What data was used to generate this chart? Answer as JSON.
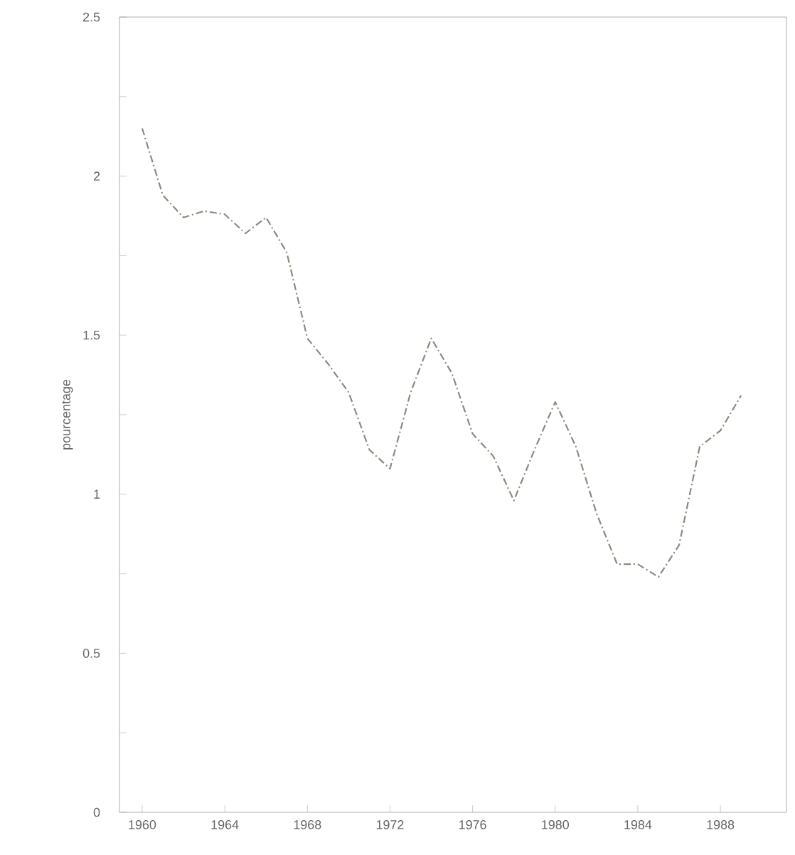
{
  "chart_data": {
    "type": "line",
    "ylabel": "pourcentage",
    "x": [
      1960,
      1961,
      1962,
      1963,
      1964,
      1965,
      1966,
      1967,
      1968,
      1969,
      1970,
      1971,
      1972,
      1973,
      1974,
      1975,
      1976,
      1977,
      1978,
      1979,
      1980,
      1981,
      1982,
      1983,
      1984,
      1985,
      1986,
      1987,
      1988,
      1989
    ],
    "series": [
      {
        "color": "#8a8a80",
        "values": [
          2.15,
          1.94,
          1.87,
          1.89,
          1.88,
          1.82,
          1.87,
          1.76,
          1.49,
          1.41,
          1.32,
          1.14,
          1.08,
          1.32,
          1.49,
          1.38,
          1.19,
          1.12,
          0.98,
          1.14,
          1.29,
          1.15,
          0.94,
          0.78,
          0.78,
          0.74,
          0.84,
          1.15,
          1.2,
          1.31
        ]
      }
    ],
    "xlim": [
      1958.9,
      1991.2
    ],
    "ylim": [
      0,
      2.5
    ],
    "xticks": [
      1960,
      1964,
      1968,
      1972,
      1976,
      1980,
      1984,
      1988
    ],
    "yticks": [
      0,
      {
        "value": 0.25,
        "label": null
      },
      0.5,
      {
        "value": 0.75,
        "label": null
      },
      1,
      {
        "value": 1.25,
        "label": null
      },
      1.5,
      {
        "value": 1.75,
        "label": null
      },
      2,
      {
        "value": 2.25,
        "label": null
      },
      2.5
    ],
    "grid": false,
    "marker": "none",
    "line_style": "dashdot"
  }
}
